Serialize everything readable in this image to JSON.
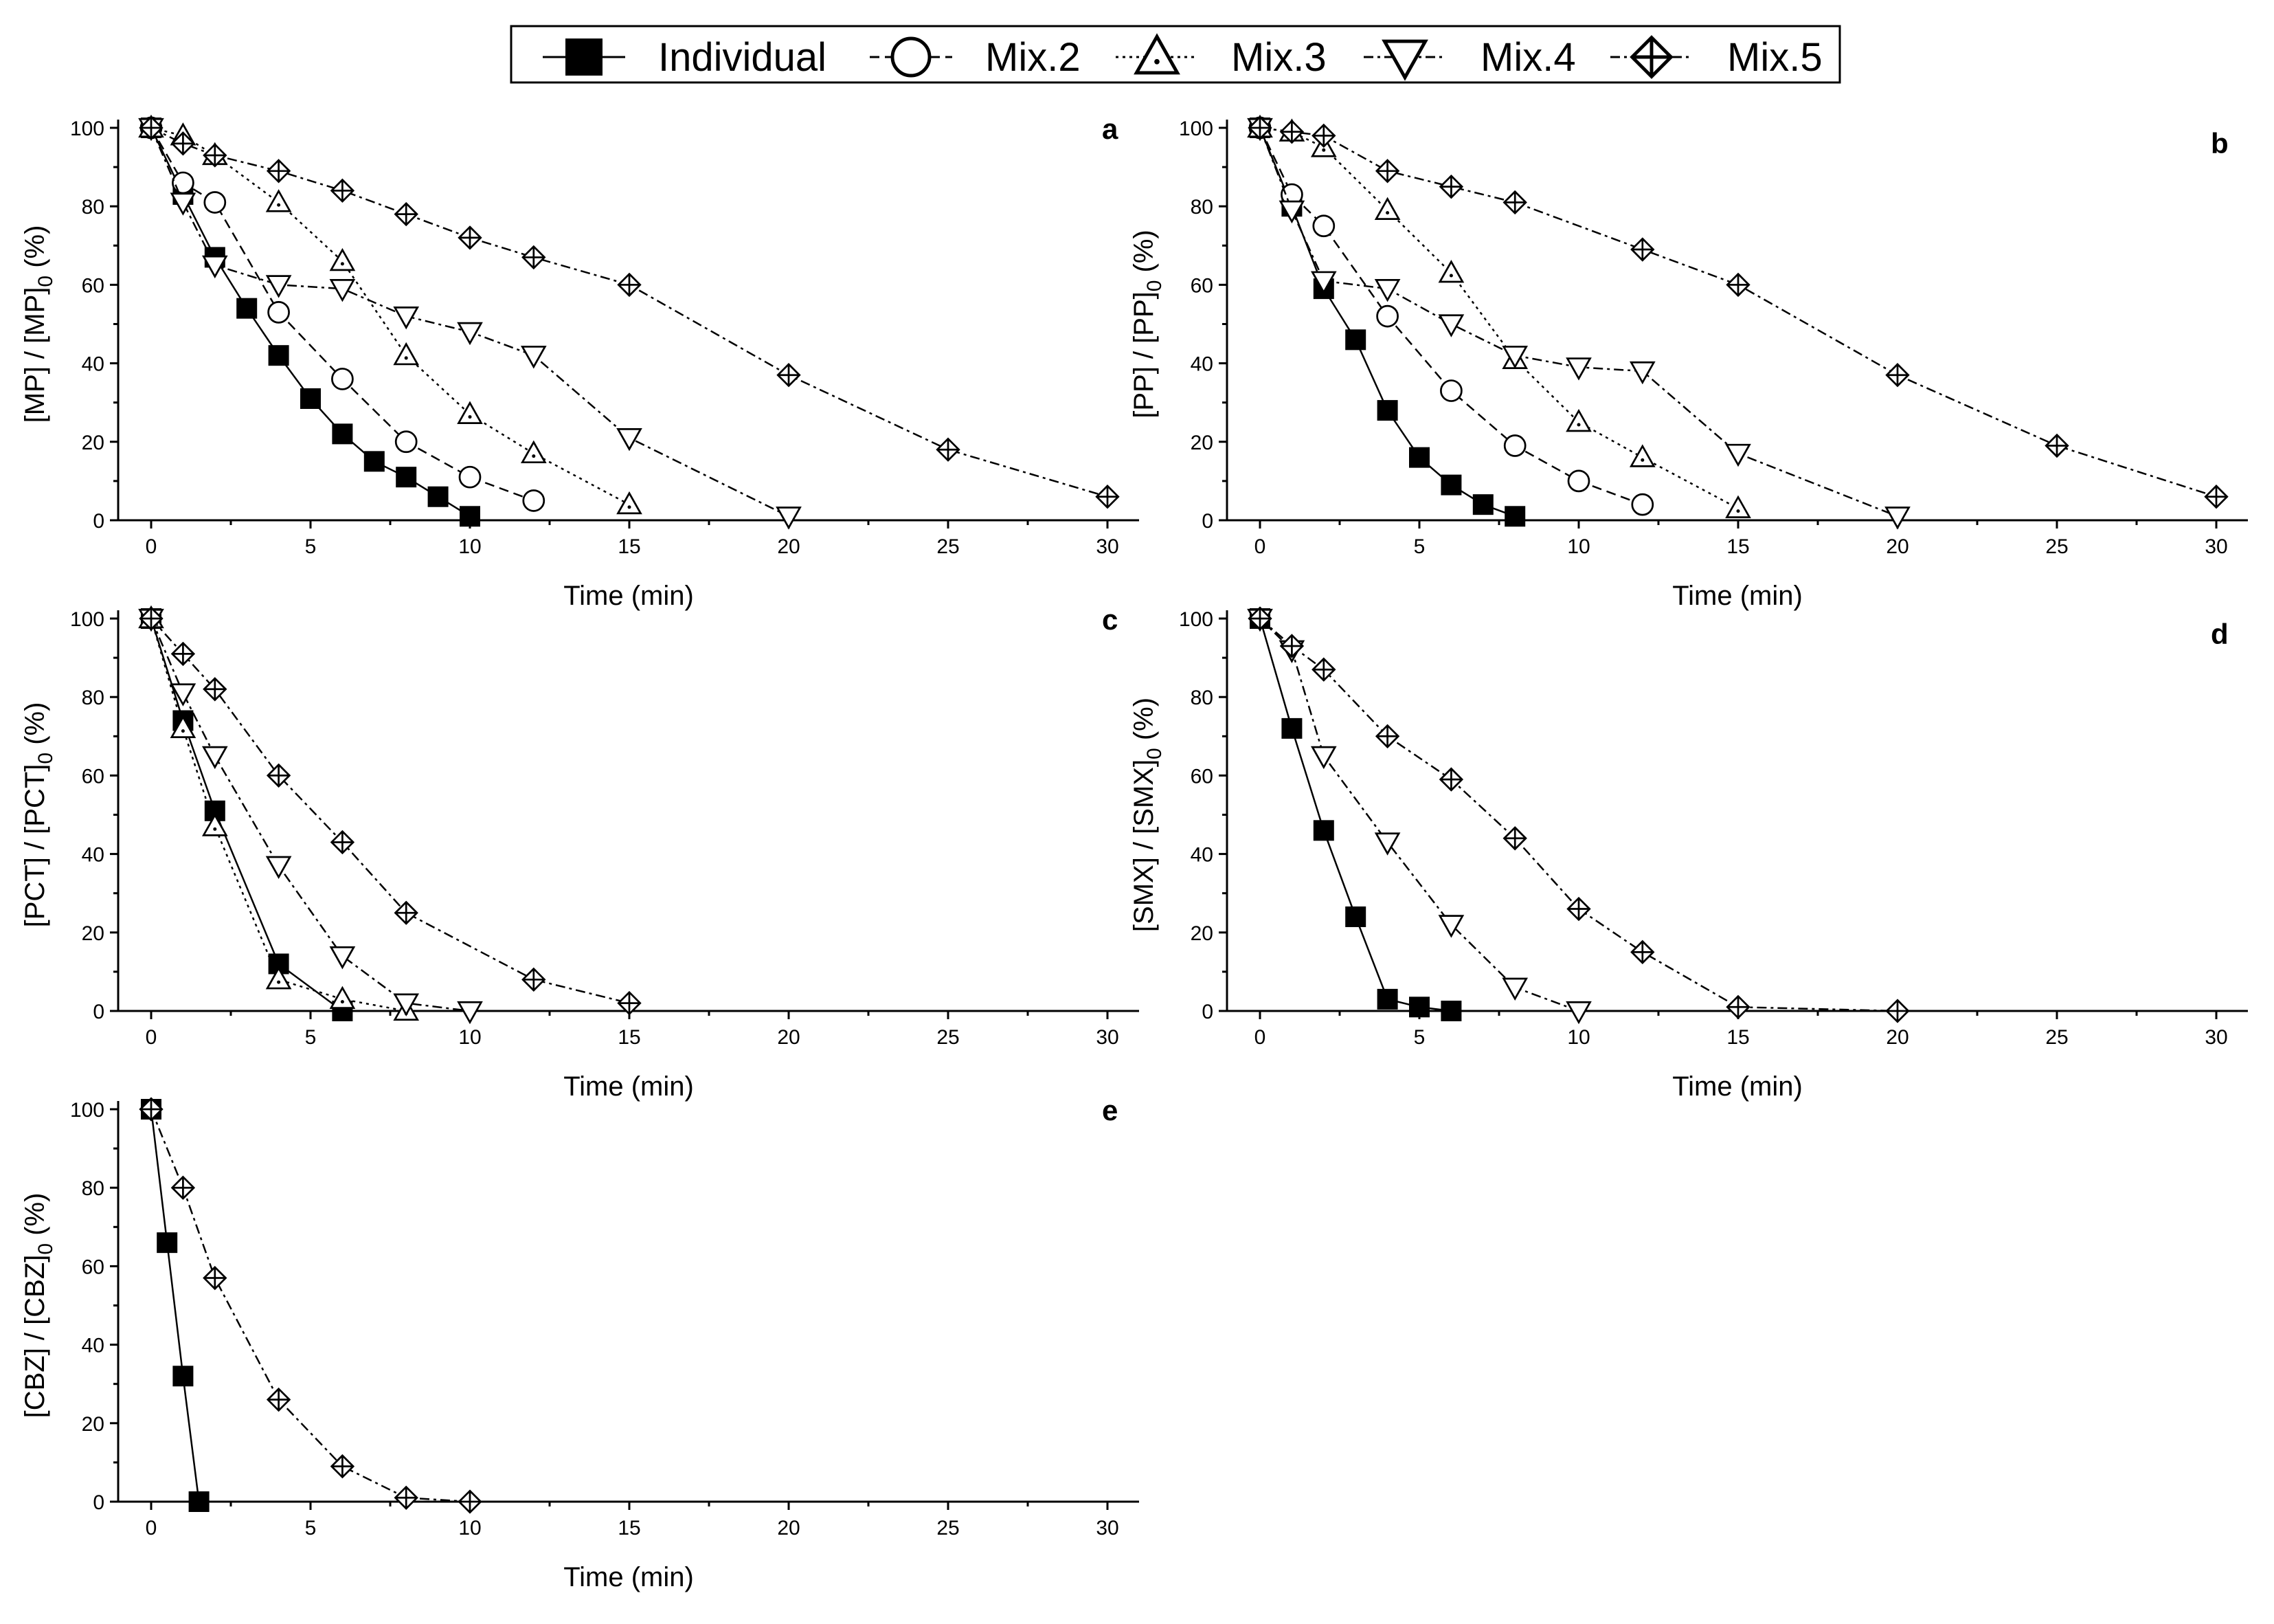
{
  "legend": [
    {
      "key": "Individual",
      "label": "Individual",
      "marker": "filled-square",
      "dash": "solid"
    },
    {
      "key": "Mix.2",
      "label": "Mix.2",
      "marker": "open-circle",
      "dash": "dash"
    },
    {
      "key": "Mix.3",
      "label": "Mix.3",
      "marker": "dotted-triangle-up",
      "dash": "dot"
    },
    {
      "key": "Mix.4",
      "label": "Mix.4",
      "marker": "open-triangle-down",
      "dash": "dashdot"
    },
    {
      "key": "Mix.5",
      "label": "Mix.5",
      "marker": "crossed-diamond",
      "dash": "dashdot"
    }
  ],
  "chart_data": [
    {
      "panel": "a",
      "type": "line",
      "xlabel": "Time (min)",
      "ylabel": "[MP] / [MP]",
      "ylabel_sub": "0",
      "ylabel_suffix": " (%)",
      "xlim": [
        0,
        30
      ],
      "ylim": [
        0,
        100
      ],
      "xticks": [
        0,
        5,
        10,
        15,
        20,
        25,
        30
      ],
      "yticks": [
        0,
        20,
        40,
        60,
        80,
        100
      ],
      "series": [
        {
          "name": "Individual",
          "x": [
            0,
            1,
            2,
            3,
            4,
            5,
            6,
            7,
            8,
            9,
            10
          ],
          "y": [
            100,
            83,
            67,
            54,
            42,
            31,
            22,
            15,
            11,
            6,
            1
          ]
        },
        {
          "name": "Mix.2",
          "x": [
            0,
            1,
            2,
            4,
            6,
            8,
            10,
            12
          ],
          "y": [
            100,
            86,
            81,
            53,
            36,
            20,
            11,
            5
          ]
        },
        {
          "name": "Mix.3",
          "x": [
            0,
            1,
            2,
            4,
            6,
            8,
            10,
            12,
            15
          ],
          "y": [
            100,
            98,
            93,
            81,
            66,
            42,
            27,
            17,
            4
          ]
        },
        {
          "name": "Mix.4",
          "x": [
            0,
            1,
            2,
            4,
            6,
            8,
            10,
            12,
            15,
            20
          ],
          "y": [
            100,
            81,
            65,
            60,
            59,
            52,
            48,
            42,
            21,
            1
          ]
        },
        {
          "name": "Mix.5",
          "x": [
            0,
            1,
            2,
            4,
            6,
            8,
            10,
            12,
            15,
            20,
            25,
            30
          ],
          "y": [
            100,
            96,
            93,
            89,
            84,
            78,
            72,
            67,
            60,
            37,
            18,
            6
          ]
        }
      ]
    },
    {
      "panel": "b",
      "type": "line",
      "xlabel": "Time (min)",
      "ylabel": "[PP] / [PP]",
      "ylabel_sub": "0",
      "ylabel_suffix": " (%)",
      "xlim": [
        0,
        30
      ],
      "ylim": [
        0,
        100
      ],
      "xticks": [
        0,
        5,
        10,
        15,
        20,
        25,
        30
      ],
      "yticks": [
        0,
        20,
        40,
        60,
        80,
        100
      ],
      "series": [
        {
          "name": "Individual",
          "x": [
            0,
            1,
            2,
            3,
            4,
            5,
            6,
            7,
            8
          ],
          "y": [
            100,
            80,
            59,
            46,
            28,
            16,
            9,
            4,
            1
          ]
        },
        {
          "name": "Mix.2",
          "x": [
            0,
            1,
            2,
            4,
            6,
            8,
            10,
            12
          ],
          "y": [
            100,
            83,
            75,
            52,
            33,
            19,
            10,
            4
          ]
        },
        {
          "name": "Mix.3",
          "x": [
            0,
            1,
            2,
            4,
            6,
            8,
            10,
            12,
            15
          ],
          "y": [
            100,
            99,
            95,
            79,
            63,
            41,
            25,
            16,
            3
          ]
        },
        {
          "name": "Mix.4",
          "x": [
            0,
            1,
            2,
            4,
            6,
            8,
            10,
            12,
            15,
            20
          ],
          "y": [
            100,
            79,
            61,
            59,
            50,
            42,
            39,
            38,
            17,
            1
          ]
        },
        {
          "name": "Mix.5",
          "x": [
            0,
            1,
            2,
            4,
            6,
            8,
            12,
            15,
            20,
            25,
            30
          ],
          "y": [
            100,
            99,
            98,
            89,
            85,
            81,
            69,
            60,
            37,
            19,
            6
          ]
        }
      ]
    },
    {
      "panel": "c",
      "type": "line",
      "xlabel": "Time (min)",
      "ylabel": "[PCT] / [PCT]",
      "ylabel_sub": "0",
      "ylabel_suffix": " (%)",
      "xlim": [
        0,
        30
      ],
      "ylim": [
        0,
        100
      ],
      "xticks": [
        0,
        5,
        10,
        15,
        20,
        25,
        30
      ],
      "yticks": [
        0,
        20,
        40,
        60,
        80,
        100
      ],
      "series": [
        {
          "name": "Individual",
          "x": [
            0,
            1,
            2,
            4,
            6
          ],
          "y": [
            100,
            74,
            51,
            12,
            0
          ]
        },
        {
          "name": "Mix.3",
          "x": [
            0,
            1,
            2,
            4,
            6,
            8
          ],
          "y": [
            100,
            72,
            47,
            8,
            3,
            0
          ]
        },
        {
          "name": "Mix.4",
          "x": [
            0,
            1,
            2,
            4,
            6,
            8,
            10
          ],
          "y": [
            100,
            81,
            65,
            37,
            14,
            2,
            0
          ]
        },
        {
          "name": "Mix.5",
          "x": [
            0,
            1,
            2,
            4,
            6,
            8,
            12,
            15
          ],
          "y": [
            100,
            91,
            82,
            60,
            43,
            25,
            8,
            2
          ]
        }
      ]
    },
    {
      "panel": "d",
      "type": "line",
      "xlabel": "Time (min)",
      "ylabel": "[SMX] / [SMX]",
      "ylabel_sub": "0",
      "ylabel_suffix": " (%)",
      "xlim": [
        0,
        30
      ],
      "ylim": [
        0,
        100
      ],
      "xticks": [
        0,
        5,
        10,
        15,
        20,
        25,
        30
      ],
      "yticks": [
        0,
        20,
        40,
        60,
        80,
        100
      ],
      "series": [
        {
          "name": "Individual",
          "x": [
            0,
            1,
            2,
            3,
            4,
            5,
            6
          ],
          "y": [
            100,
            72,
            46,
            24,
            3,
            1,
            0
          ]
        },
        {
          "name": "Mix.4",
          "x": [
            0,
            1,
            2,
            4,
            6,
            8,
            10
          ],
          "y": [
            100,
            92,
            65,
            43,
            22,
            6,
            0
          ]
        },
        {
          "name": "Mix.5",
          "x": [
            0,
            1,
            2,
            4,
            6,
            8,
            10,
            12,
            15,
            20
          ],
          "y": [
            100,
            93,
            87,
            70,
            59,
            44,
            26,
            15,
            1,
            0
          ]
        }
      ]
    },
    {
      "panel": "e",
      "type": "line",
      "xlabel": "Time (min)",
      "ylabel": "[CBZ] / [CBZ]",
      "ylabel_sub": "0",
      "ylabel_suffix": " (%)",
      "xlim": [
        0,
        30
      ],
      "ylim": [
        0,
        100
      ],
      "xticks": [
        0,
        5,
        10,
        15,
        20,
        25,
        30
      ],
      "yticks": [
        0,
        20,
        40,
        60,
        80,
        100
      ],
      "series": [
        {
          "name": "Individual",
          "x": [
            0,
            0.5,
            1,
            1.5
          ],
          "y": [
            100,
            66,
            32,
            0
          ]
        },
        {
          "name": "Mix.5",
          "x": [
            0,
            1,
            2,
            4,
            6,
            8,
            10
          ],
          "y": [
            100,
            80,
            57,
            26,
            9,
            1,
            0
          ]
        }
      ]
    }
  ]
}
